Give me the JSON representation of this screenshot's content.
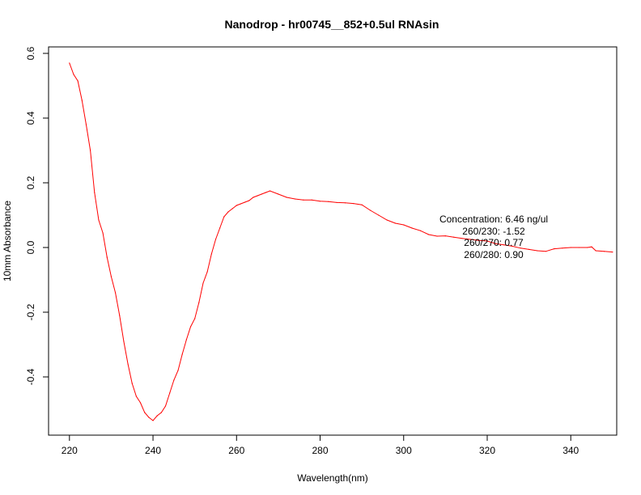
{
  "chart_data": {
    "type": "line",
    "title": "Nanodrop - hr00745__852+0.5ul RNAsin",
    "xlabel": "Wavelength(nm)",
    "ylabel": "10mm Absorbance",
    "xlim": [
      215,
      351
    ],
    "ylim": [
      -0.58,
      0.62
    ],
    "x_ticks": [
      220,
      240,
      260,
      280,
      300,
      320,
      340
    ],
    "y_ticks": [
      -0.4,
      -0.2,
      0.0,
      0.2,
      0.4,
      0.6
    ],
    "x_tick_labels": [
      "220",
      "240",
      "260",
      "280",
      "300",
      "320",
      "340"
    ],
    "y_tick_labels": [
      "-0.4",
      "-0.2",
      "0.0",
      "0.2",
      "0.4",
      "0.6"
    ],
    "grid": false,
    "series": [
      {
        "color": "#ff0000",
        "x": [
          220,
          221,
          222,
          223,
          224,
          225,
          226,
          227,
          228,
          229,
          230,
          231,
          232,
          233,
          234,
          235,
          236,
          237,
          238,
          239,
          240,
          241,
          242,
          243,
          244,
          245,
          246,
          247,
          248,
          249,
          250,
          251,
          252,
          253,
          254,
          255,
          256,
          257,
          258,
          259,
          260,
          261,
          262,
          263,
          264,
          265,
          266,
          267,
          268,
          270,
          272,
          274,
          276,
          278,
          280,
          282,
          284,
          286,
          288,
          290,
          292,
          294,
          296,
          298,
          300,
          302,
          304,
          306,
          308,
          310,
          312,
          314,
          316,
          318,
          320,
          322,
          324,
          326,
          328,
          330,
          332,
          334,
          336,
          338,
          340,
          342,
          344,
          345,
          346,
          348,
          350
        ],
        "y": [
          0.57,
          0.535,
          0.515,
          0.455,
          0.38,
          0.3,
          0.17,
          0.085,
          0.045,
          -0.03,
          -0.09,
          -0.14,
          -0.21,
          -0.29,
          -0.36,
          -0.42,
          -0.46,
          -0.48,
          -0.51,
          -0.525,
          -0.535,
          -0.52,
          -0.51,
          -0.49,
          -0.45,
          -0.41,
          -0.38,
          -0.33,
          -0.285,
          -0.245,
          -0.22,
          -0.17,
          -0.11,
          -0.075,
          -0.02,
          0.025,
          0.06,
          0.095,
          0.11,
          0.12,
          0.13,
          0.135,
          0.14,
          0.145,
          0.155,
          0.16,
          0.165,
          0.17,
          0.175,
          0.165,
          0.155,
          0.15,
          0.147,
          0.147,
          0.143,
          0.142,
          0.139,
          0.138,
          0.136,
          0.132,
          0.115,
          0.1,
          0.085,
          0.075,
          0.07,
          0.06,
          0.052,
          0.04,
          0.035,
          0.036,
          0.032,
          0.028,
          0.025,
          0.022,
          0.02,
          0.012,
          0.008,
          0.004,
          -0.002,
          -0.006,
          -0.01,
          -0.012,
          -0.004,
          -0.002,
          0.0,
          0.0,
          0.0,
          0.002,
          -0.01,
          -0.012,
          -0.014
        ]
      }
    ],
    "annotations": [
      "Concentration: 6.46 ng/ul",
      "260/230: -1.52",
      "260/270: 0.77",
      "260/280: 0.90"
    ]
  }
}
